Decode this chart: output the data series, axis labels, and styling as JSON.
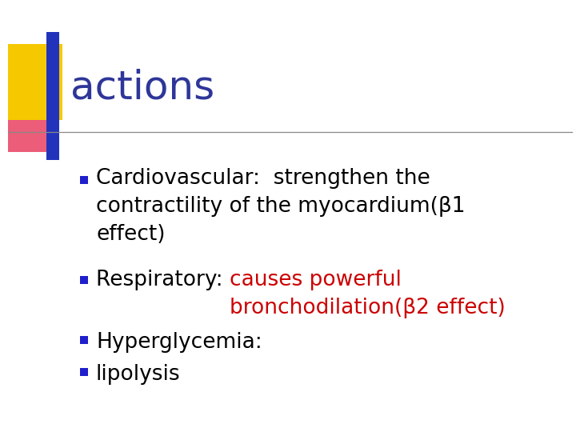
{
  "title": "actions",
  "title_color": "#2E3699",
  "title_fontsize": 36,
  "background_color": "#FFFFFF",
  "bullet_color": "#1F1FCC",
  "fontsize": 19,
  "line1_black": "Cardiovascular:  strengthen the\ncontractility of the myocardium(β1\neffect)",
  "line2_black": "Respiratory: ",
  "line2_red": "causes powerful\nbronchodilation(β2 effect)",
  "line3": "Hyperglycemia:",
  "line4": "lipolysis",
  "text_color": "#000000",
  "red_color": "#CC0000"
}
